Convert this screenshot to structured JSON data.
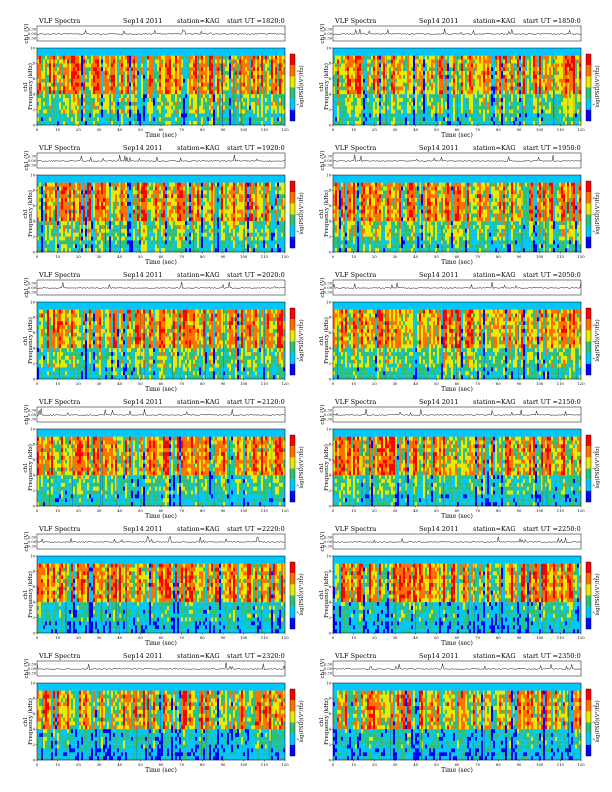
{
  "common": {
    "title_left": "VLF Spectra",
    "date": "Sep14 2011",
    "station": "station=KAG",
    "start_prefix": "start  UT  =",
    "amp_ylabel": "ch1 (V)",
    "amp_ticks": [
      "0.30",
      "0.00",
      "-0.30"
    ],
    "spec_ylabel": "Frequency  (kHz)",
    "spec_ylabel_ch": "ch1",
    "freq_ticks": [
      "0",
      "2",
      "4",
      "6",
      "8",
      "10"
    ],
    "time_ticks": [
      "0",
      "10",
      "20",
      "30",
      "40",
      "50",
      "60",
      "70",
      "80",
      "90",
      "100",
      "110",
      "120"
    ],
    "xlabel": "Time  (sec)",
    "colorbar_label": "log(PSD)(V²/Hz)",
    "colorbar_ticks": [
      "-2",
      "-4",
      "-6"
    ]
  },
  "panels": [
    {
      "start": "1820:0"
    },
    {
      "start": "1850:0"
    },
    {
      "start": "1920:0"
    },
    {
      "start": "1950:0"
    },
    {
      "start": "2020:0"
    },
    {
      "start": "2050:0"
    },
    {
      "start": "2120:0"
    },
    {
      "start": "2150:0"
    },
    {
      "start": "2220:0"
    },
    {
      "start": "2250:0"
    },
    {
      "start": "2320:0"
    },
    {
      "start": "2350:0"
    }
  ],
  "chart_data": {
    "type": "heatmap",
    "panel_count": 12,
    "x_range": [
      0,
      120
    ],
    "x_unit": "sec",
    "freq_range_khz": [
      0,
      10
    ],
    "amplitude_range_v": [
      -0.3,
      0.3
    ],
    "colormap": [
      "#0000ff",
      "#00c8ff",
      "#2ec07a",
      "#eaea00",
      "#ff7000",
      "#ff0000"
    ]
  }
}
